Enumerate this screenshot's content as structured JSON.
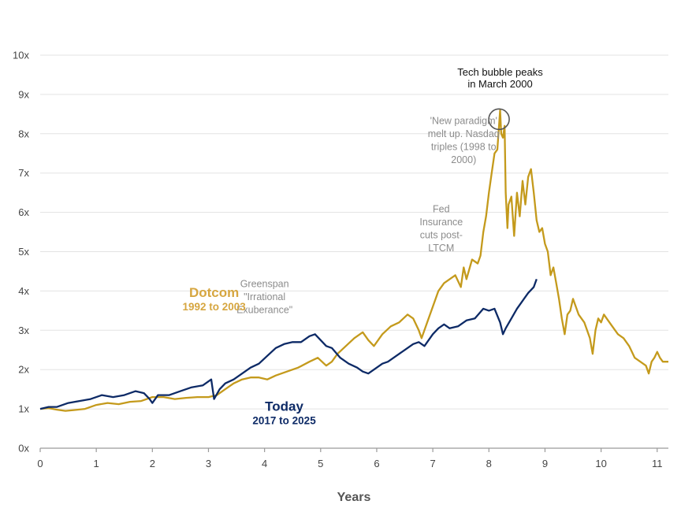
{
  "chart_data": {
    "type": "line",
    "title": "",
    "xlabel": "Years",
    "ylabel": "",
    "xlim": [
      0,
      11.2
    ],
    "ylim": [
      0,
      10
    ],
    "x_ticks": [
      "0",
      "1",
      "2",
      "3",
      "4",
      "5",
      "6",
      "7",
      "8",
      "9",
      "10",
      "11"
    ],
    "y_ticks": [
      "0x",
      "1x",
      "2x",
      "3x",
      "4x",
      "5x",
      "6x",
      "7x",
      "8x",
      "9x",
      "10x"
    ],
    "grid": "horizontal",
    "colors": {
      "dotcom": "#c49a1c",
      "today": "#0d2a66",
      "dotcom_label": "#d6a640"
    },
    "series": [
      {
        "key": "dotcom",
        "name": "Dotcom",
        "period": "1992 to 2003",
        "x": [
          0,
          0.15,
          0.3,
          0.45,
          0.6,
          0.8,
          1.0,
          1.2,
          1.4,
          1.6,
          1.8,
          2.0,
          2.2,
          2.4,
          2.6,
          2.8,
          3.0,
          3.15,
          3.3,
          3.45,
          3.6,
          3.75,
          3.9,
          4.05,
          4.2,
          4.4,
          4.6,
          4.8,
          4.95,
          5.1,
          5.2,
          5.3,
          5.45,
          5.6,
          5.75,
          5.85,
          5.95,
          6.1,
          6.25,
          6.4,
          6.55,
          6.65,
          6.75,
          6.8,
          6.9,
          7.0,
          7.1,
          7.2,
          7.3,
          7.4,
          7.5,
          7.55,
          7.6,
          7.7,
          7.8,
          7.85,
          7.9,
          7.95,
          8.0,
          8.05,
          8.1,
          8.15,
          8.2,
          8.22,
          8.25,
          8.28,
          8.3,
          8.33,
          8.35,
          8.4,
          8.45,
          8.5,
          8.55,
          8.6,
          8.65,
          8.7,
          8.75,
          8.8,
          8.85,
          8.9,
          8.95,
          9.0,
          9.05,
          9.1,
          9.15,
          9.2,
          9.25,
          9.3,
          9.35,
          9.4,
          9.45,
          9.5,
          9.6,
          9.7,
          9.8,
          9.85,
          9.9,
          9.95,
          10.0,
          10.05,
          10.1,
          10.2,
          10.3,
          10.4,
          10.5,
          10.6,
          10.7,
          10.8,
          10.85,
          10.9,
          10.95,
          11.0,
          11.05,
          11.1,
          11.2
        ],
        "values": [
          1.0,
          1.02,
          0.98,
          0.95,
          0.97,
          1.0,
          1.1,
          1.15,
          1.12,
          1.18,
          1.2,
          1.3,
          1.3,
          1.25,
          1.28,
          1.3,
          1.3,
          1.35,
          1.5,
          1.65,
          1.75,
          1.8,
          1.8,
          1.75,
          1.85,
          1.95,
          2.05,
          2.2,
          2.3,
          2.1,
          2.2,
          2.4,
          2.6,
          2.8,
          2.95,
          2.75,
          2.6,
          2.9,
          3.1,
          3.2,
          3.4,
          3.3,
          3.0,
          2.8,
          3.2,
          3.6,
          4.0,
          4.2,
          4.3,
          4.4,
          4.1,
          4.6,
          4.3,
          4.8,
          4.7,
          4.9,
          5.5,
          5.9,
          6.5,
          7.0,
          7.5,
          7.6,
          8.6,
          8.0,
          7.9,
          8.2,
          6.5,
          5.6,
          6.2,
          6.4,
          5.4,
          6.5,
          5.9,
          6.8,
          6.2,
          6.9,
          7.1,
          6.5,
          5.8,
          5.5,
          5.6,
          5.2,
          5.0,
          4.4,
          4.6,
          4.2,
          3.8,
          3.3,
          2.9,
          3.4,
          3.5,
          3.8,
          3.4,
          3.2,
          2.8,
          2.4,
          3.0,
          3.3,
          3.2,
          3.4,
          3.3,
          3.1,
          2.9,
          2.8,
          2.6,
          2.3,
          2.2,
          2.1,
          1.9,
          2.2,
          2.3,
          2.45,
          2.3,
          2.2,
          2.2
        ]
      },
      {
        "key": "today",
        "name": "Today",
        "period": "2017 to 2025",
        "x": [
          0,
          0.15,
          0.3,
          0.5,
          0.7,
          0.9,
          1.1,
          1.3,
          1.5,
          1.7,
          1.85,
          1.95,
          2.0,
          2.1,
          2.3,
          2.5,
          2.7,
          2.9,
          3.05,
          3.1,
          3.2,
          3.3,
          3.45,
          3.6,
          3.75,
          3.9,
          4.05,
          4.2,
          4.35,
          4.5,
          4.65,
          4.8,
          4.9,
          5.0,
          5.1,
          5.2,
          5.35,
          5.5,
          5.65,
          5.75,
          5.85,
          6.0,
          6.1,
          6.2,
          6.35,
          6.5,
          6.65,
          6.75,
          6.85,
          7.0,
          7.1,
          7.2,
          7.3,
          7.45,
          7.6,
          7.75,
          7.9,
          8.0,
          8.1,
          8.2,
          8.25,
          8.3,
          8.4,
          8.5,
          8.6,
          8.7,
          8.8,
          8.85
        ],
        "values": [
          1.0,
          1.05,
          1.05,
          1.15,
          1.2,
          1.25,
          1.35,
          1.3,
          1.35,
          1.45,
          1.4,
          1.25,
          1.15,
          1.35,
          1.35,
          1.45,
          1.55,
          1.6,
          1.75,
          1.25,
          1.5,
          1.65,
          1.75,
          1.9,
          2.05,
          2.15,
          2.35,
          2.55,
          2.65,
          2.7,
          2.7,
          2.85,
          2.9,
          2.75,
          2.6,
          2.55,
          2.3,
          2.15,
          2.05,
          1.95,
          1.9,
          2.05,
          2.15,
          2.2,
          2.35,
          2.5,
          2.65,
          2.7,
          2.6,
          2.9,
          3.05,
          3.15,
          3.05,
          3.1,
          3.25,
          3.3,
          3.55,
          3.5,
          3.55,
          3.2,
          2.9,
          3.05,
          3.3,
          3.55,
          3.75,
          3.95,
          4.1,
          4.3
        ]
      }
    ],
    "series_labels": [
      {
        "key": "dotcom",
        "name": "Dotcom",
        "period": "1992 to 2003",
        "x": 3.1,
        "y": 3.85
      },
      {
        "key": "today",
        "name": "Today",
        "period": "2017 to 2025",
        "x": 4.35,
        "y": 0.95
      }
    ],
    "annotations": [
      {
        "key": "greenspan",
        "lines": [
          "Greenspan",
          "\"Irrational",
          "Exuberance\""
        ],
        "x": 4.0,
        "y": 4.1
      },
      {
        "key": "fed",
        "lines": [
          "Fed",
          "Insurance",
          "cuts post-",
          "LTCM"
        ],
        "x": 7.15,
        "y": 6.0
      },
      {
        "key": "paradigm",
        "lines": [
          "'New paradigm'",
          "melt up. Nasdaq",
          "triples (1998 to",
          "2000)"
        ],
        "x": 7.55,
        "y": 8.25
      }
    ],
    "callout": {
      "lines": [
        "Tech bubble peaks",
        "in March 2000"
      ],
      "x": 8.2,
      "y": 8.4
    }
  }
}
